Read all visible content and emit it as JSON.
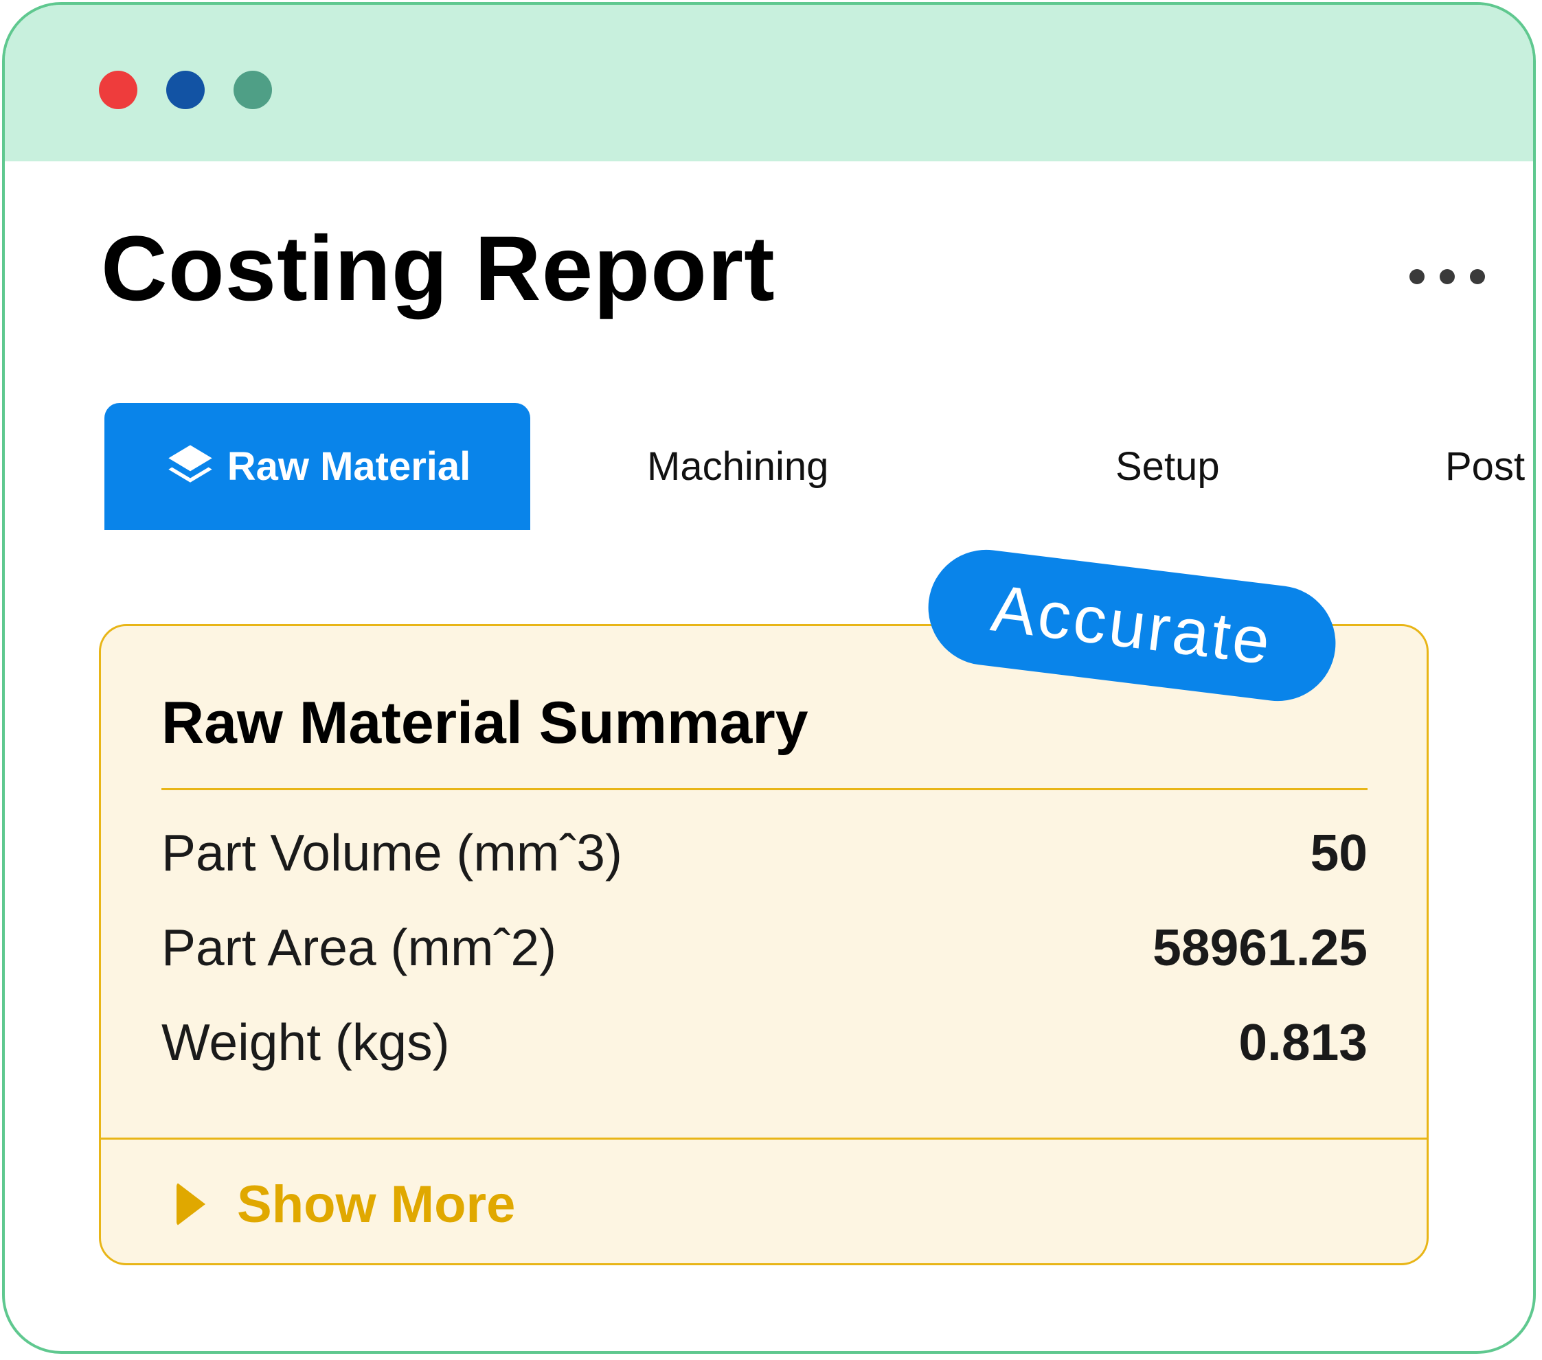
{
  "window": {
    "controls": [
      "close",
      "minimize",
      "maximize"
    ],
    "colors": {
      "border": "#5fc88f",
      "titlebar": "#c8f0dd",
      "close": "#ee3c3c",
      "minimize": "#1253a4",
      "maximize": "#4f9f86"
    }
  },
  "header": {
    "title": "Costing Report",
    "more_icon": "more-horizontal-icon"
  },
  "tabs": [
    {
      "label": "Raw Material",
      "icon": "layers-icon",
      "active": true
    },
    {
      "label": "Machining",
      "active": false
    },
    {
      "label": "Setup",
      "active": false
    },
    {
      "label": "Post",
      "active": false
    }
  ],
  "badge": {
    "label": "Accurate",
    "color": "#0984ea"
  },
  "summary": {
    "title": "Raw Material Summary",
    "rows": [
      {
        "label": "Part Volume (mmˆ3)",
        "value": "50"
      },
      {
        "label": "Part Area (mmˆ2)",
        "value": "58961.25"
      },
      {
        "label": "Weight (kgs)",
        "value": "0.813"
      }
    ],
    "show_more_label": "Show More",
    "show_more_icon": "caret-right-icon",
    "colors": {
      "background": "#fdf5e2",
      "border": "#e8b517",
      "accent": "#e0a800"
    }
  },
  "accent_color": "#0984ea"
}
